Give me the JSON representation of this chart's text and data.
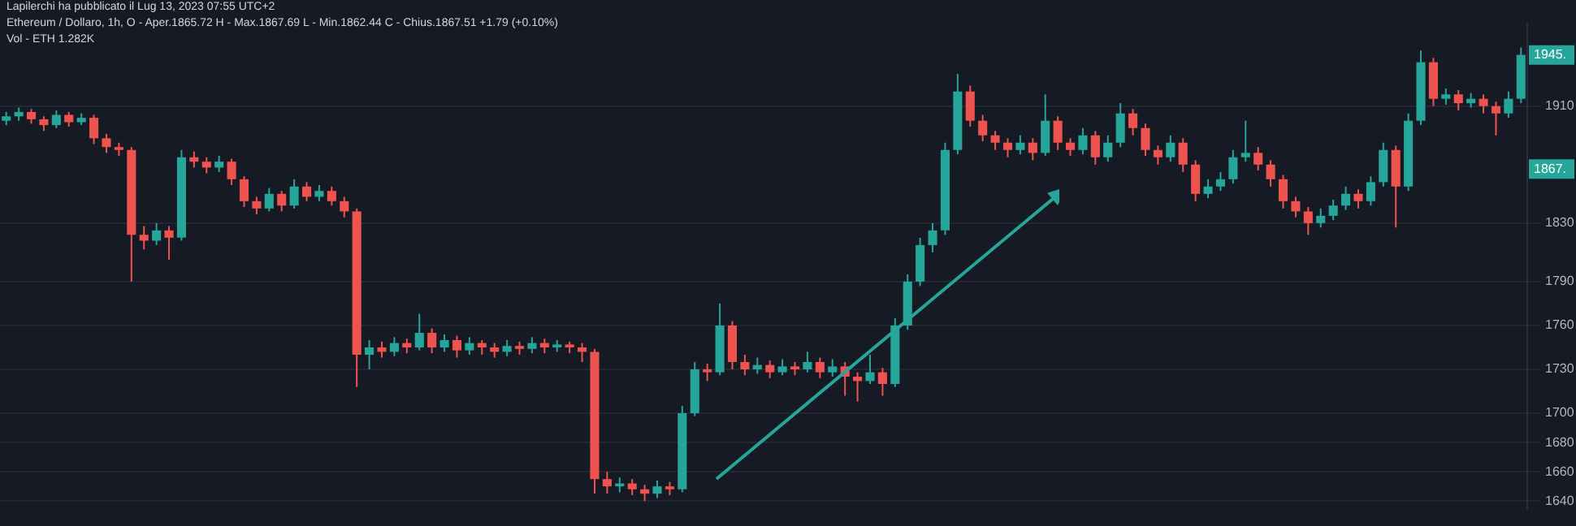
{
  "chart_data": {
    "type": "candlestick",
    "title": "Lapilerchi ha pubblicato il Lug 13, 2023 07:55 UTC+2",
    "subtitle": "Ethereum / Dollaro, 1h, O - Aper.1865.72 H - Max.1867.69 L - Min.1862.44 C - Chius.1867.51 +1.79 (+0.10%)",
    "annotations": [
      "Vol - ETH 1.282K",
      {
        "text": "1945.",
        "y": 1945
      },
      {
        "text": "1867.",
        "y": 1867
      }
    ],
    "categories": [
      null,
      null,
      null,
      null,
      null,
      null,
      null,
      null,
      null,
      null,
      null,
      null,
      null,
      null,
      null,
      null,
      null,
      null,
      null,
      null,
      null,
      null,
      null,
      null,
      null,
      null,
      null,
      null,
      null,
      null,
      null,
      null,
      null,
      null,
      null,
      null,
      null,
      null,
      null,
      null,
      null,
      null,
      null,
      null,
      null,
      null,
      null,
      null,
      null,
      null,
      null,
      null,
      null,
      null,
      null,
      null,
      null,
      null,
      null,
      null,
      null,
      null,
      null,
      null,
      null,
      null,
      null,
      null,
      null,
      null,
      null,
      null,
      null,
      null,
      null,
      null,
      null,
      null,
      null,
      null,
      null,
      null,
      null,
      null,
      null,
      null,
      null,
      null,
      null,
      null,
      null,
      null,
      null,
      null,
      null,
      null,
      null,
      null,
      null,
      null,
      null,
      null,
      null,
      null,
      null,
      null,
      null,
      null,
      null,
      null,
      null,
      null,
      null,
      null,
      null,
      null,
      null,
      null,
      null,
      null,
      null,
      null
    ],
    "colors": [
      "#26a69a",
      "#26a69a",
      "#ef5350",
      "#ef5350",
      "#26a69a",
      "#ef5350",
      "#26a69a",
      "#ef5350",
      "#ef5350",
      "#ef5350",
      "#ef5350",
      "#ef5350",
      "#26a69a",
      "#ef5350",
      "#26a69a",
      "#ef5350",
      "#ef5350",
      "#26a69a",
      "#ef5350",
      "#ef5350",
      "#ef5350",
      "#26a69a",
      "#ef5350",
      "#26a69a",
      "#ef5350",
      "#26a69a",
      "#ef5350",
      "#ef5350",
      "#ef5350",
      "#26a69a",
      "#ef5350",
      "#26a69a",
      "#ef5350",
      "#26a69a",
      "#ef5350",
      "#26a69a",
      "#ef5350",
      "#26a69a",
      "#ef5350",
      "#ef5350",
      "#26a69a",
      "#ef5350",
      "#26a69a",
      "#ef5350",
      "#26a69a",
      "#ef5350",
      "#ef5350",
      "#ef5350",
      "#ef5350",
      "#26a69a",
      "#ef5350",
      "#ef5350",
      "#26a69a",
      "#ef5350",
      "#26a69a",
      "#26a69a",
      "#ef5350",
      "#26a69a",
      "#ef5350",
      "#ef5350",
      "#26a69a",
      "#ef5350",
      "#26a69a",
      "#ef5350",
      "#26a69a",
      "#ef5350",
      "#26a69a",
      "#ef5350",
      "#ef5350",
      "#26a69a",
      "#ef5350",
      "#26a69a",
      "#26a69a",
      "#26a69a",
      "#26a69a",
      "#26a69a",
      "#26a69a",
      "#ef5350",
      "#ef5350",
      "#ef5350",
      "#ef5350",
      "#26a69a",
      "#ef5350",
      "#26a69a",
      "#ef5350",
      "#ef5350",
      "#26a69a",
      "#ef5350",
      "#26a69a",
      "#26a69a",
      "#ef5350",
      "#ef5350",
      "#ef5350",
      "#26a69a",
      "#ef5350",
      "#ef5350",
      "#26a69a",
      "#26a69a",
      "#26a69a",
      "#26a69a",
      "#ef5350",
      "#ef5350",
      "#ef5350",
      "#ef5350",
      "#ef5350",
      "#26a69a",
      "#26a69a",
      "#26a69a",
      "#ef5350",
      "#26a69a",
      "#26a69a",
      "#ef5350",
      "#26a69a",
      "#26a69a",
      "#ef5350",
      "#26a69a",
      "#ef5350",
      "#26a69a",
      "#ef5350",
      "#ef5350",
      "#26a69a",
      "#26a69a"
    ],
    "ohlc": [
      [
        1900,
        1906,
        1897,
        1903
      ],
      [
        1903,
        1909,
        1900,
        1906
      ],
      [
        1906,
        1908,
        1898,
        1901
      ],
      [
        1901,
        1903,
        1893,
        1897
      ],
      [
        1897,
        1907,
        1895,
        1904
      ],
      [
        1904,
        1906,
        1896,
        1899
      ],
      [
        1899,
        1905,
        1897,
        1902
      ],
      [
        1902,
        1904,
        1884,
        1888
      ],
      [
        1888,
        1891,
        1878,
        1882
      ],
      [
        1882,
        1885,
        1876,
        1880
      ],
      [
        1880,
        1882,
        1790,
        1822
      ],
      [
        1822,
        1828,
        1812,
        1818
      ],
      [
        1818,
        1830,
        1815,
        1825
      ],
      [
        1825,
        1828,
        1805,
        1820
      ],
      [
        1820,
        1880,
        1818,
        1875
      ],
      [
        1875,
        1879,
        1868,
        1872
      ],
      [
        1872,
        1875,
        1864,
        1868
      ],
      [
        1868,
        1876,
        1865,
        1872
      ],
      [
        1872,
        1874,
        1856,
        1860
      ],
      [
        1860,
        1862,
        1841,
        1845
      ],
      [
        1845,
        1848,
        1836,
        1840
      ],
      [
        1840,
        1854,
        1838,
        1850
      ],
      [
        1850,
        1852,
        1838,
        1842
      ],
      [
        1842,
        1860,
        1840,
        1855
      ],
      [
        1855,
        1858,
        1845,
        1848
      ],
      [
        1848,
        1856,
        1845,
        1852
      ],
      [
        1852,
        1855,
        1842,
        1845
      ],
      [
        1845,
        1848,
        1834,
        1838
      ],
      [
        1838,
        1840,
        1718,
        1740
      ],
      [
        1740,
        1750,
        1730,
        1745
      ],
      [
        1745,
        1749,
        1738,
        1742
      ],
      [
        1742,
        1752,
        1739,
        1748
      ],
      [
        1748,
        1751,
        1741,
        1745
      ],
      [
        1745,
        1768,
        1743,
        1755
      ],
      [
        1755,
        1758,
        1741,
        1745
      ],
      [
        1745,
        1754,
        1742,
        1750
      ],
      [
        1750,
        1753,
        1738,
        1743
      ],
      [
        1743,
        1752,
        1740,
        1748
      ],
      [
        1748,
        1750,
        1740,
        1745
      ],
      [
        1745,
        1748,
        1738,
        1742
      ],
      [
        1742,
        1750,
        1739,
        1746
      ],
      [
        1746,
        1749,
        1740,
        1744
      ],
      [
        1744,
        1752,
        1741,
        1748
      ],
      [
        1748,
        1751,
        1741,
        1745
      ],
      [
        1745,
        1750,
        1742,
        1747
      ],
      [
        1747,
        1749,
        1741,
        1745
      ],
      [
        1745,
        1748,
        1735,
        1742
      ],
      [
        1742,
        1744,
        1645,
        1655
      ],
      [
        1655,
        1660,
        1645,
        1650
      ],
      [
        1650,
        1656,
        1646,
        1652
      ],
      [
        1652,
        1655,
        1644,
        1648
      ],
      [
        1648,
        1651,
        1640,
        1645
      ],
      [
        1645,
        1654,
        1642,
        1650
      ],
      [
        1650,
        1653,
        1644,
        1648
      ],
      [
        1648,
        1705,
        1646,
        1700
      ],
      [
        1700,
        1735,
        1698,
        1730
      ],
      [
        1730,
        1734,
        1722,
        1728
      ],
      [
        1728,
        1775,
        1726,
        1760
      ],
      [
        1760,
        1763,
        1730,
        1735
      ],
      [
        1735,
        1740,
        1726,
        1730
      ],
      [
        1730,
        1738,
        1727,
        1733
      ],
      [
        1733,
        1736,
        1724,
        1728
      ],
      [
        1728,
        1737,
        1726,
        1732
      ],
      [
        1732,
        1735,
        1726,
        1730
      ],
      [
        1730,
        1742,
        1728,
        1735
      ],
      [
        1735,
        1738,
        1724,
        1728
      ],
      [
        1728,
        1737,
        1725,
        1732
      ],
      [
        1732,
        1735,
        1712,
        1725
      ],
      [
        1725,
        1728,
        1708,
        1722
      ],
      [
        1722,
        1740,
        1720,
        1728
      ],
      [
        1728,
        1731,
        1712,
        1720
      ],
      [
        1720,
        1765,
        1718,
        1760
      ],
      [
        1760,
        1795,
        1757,
        1790
      ],
      [
        1790,
        1820,
        1787,
        1815
      ],
      [
        1815,
        1830,
        1810,
        1825
      ],
      [
        1825,
        1885,
        1822,
        1880
      ],
      [
        1880,
        1932,
        1877,
        1920
      ],
      [
        1920,
        1924,
        1896,
        1900
      ],
      [
        1900,
        1904,
        1886,
        1890
      ],
      [
        1890,
        1893,
        1880,
        1885
      ],
      [
        1885,
        1888,
        1875,
        1880
      ],
      [
        1880,
        1890,
        1877,
        1885
      ],
      [
        1885,
        1888,
        1873,
        1878
      ],
      [
        1878,
        1918,
        1876,
        1900
      ],
      [
        1900,
        1903,
        1880,
        1885
      ],
      [
        1885,
        1888,
        1876,
        1880
      ],
      [
        1880,
        1895,
        1877,
        1890
      ],
      [
        1890,
        1893,
        1870,
        1875
      ],
      [
        1875,
        1890,
        1872,
        1885
      ],
      [
        1885,
        1912,
        1882,
        1905
      ],
      [
        1905,
        1908,
        1890,
        1895
      ],
      [
        1895,
        1898,
        1876,
        1880
      ],
      [
        1880,
        1883,
        1870,
        1875
      ],
      [
        1875,
        1890,
        1872,
        1885
      ],
      [
        1885,
        1888,
        1865,
        1870
      ],
      [
        1870,
        1873,
        1845,
        1850
      ],
      [
        1850,
        1860,
        1847,
        1855
      ],
      [
        1855,
        1865,
        1852,
        1860
      ],
      [
        1860,
        1880,
        1857,
        1875
      ],
      [
        1875,
        1900,
        1872,
        1878
      ],
      [
        1878,
        1882,
        1866,
        1870
      ],
      [
        1870,
        1873,
        1855,
        1860
      ],
      [
        1860,
        1863,
        1840,
        1845
      ],
      [
        1845,
        1848,
        1834,
        1838
      ],
      [
        1838,
        1841,
        1822,
        1830
      ],
      [
        1830,
        1840,
        1827,
        1835
      ],
      [
        1835,
        1846,
        1832,
        1842
      ],
      [
        1842,
        1855,
        1839,
        1850
      ],
      [
        1850,
        1853,
        1840,
        1845
      ],
      [
        1845,
        1862,
        1842,
        1858
      ],
      [
        1858,
        1885,
        1855,
        1880
      ],
      [
        1880,
        1883,
        1827,
        1855
      ],
      [
        1855,
        1905,
        1852,
        1900
      ],
      [
        1900,
        1948,
        1897,
        1940
      ],
      [
        1940,
        1943,
        1910,
        1915
      ],
      [
        1915,
        1922,
        1911,
        1918
      ],
      [
        1918,
        1921,
        1907,
        1912
      ],
      [
        1912,
        1919,
        1909,
        1915
      ],
      [
        1915,
        1918,
        1905,
        1910
      ],
      [
        1910,
        1913,
        1890,
        1905
      ],
      [
        1905,
        1920,
        1902,
        1915
      ],
      [
        1915,
        1950,
        1912,
        1945
      ]
    ],
    "ylim": [
      1634,
      1967
    ],
    "yticks": [
      1640,
      1660,
      1680,
      1700,
      1730,
      1760,
      1790,
      1830,
      1910
    ],
    "grid": "y",
    "legend": false,
    "tick_labels": "y"
  }
}
